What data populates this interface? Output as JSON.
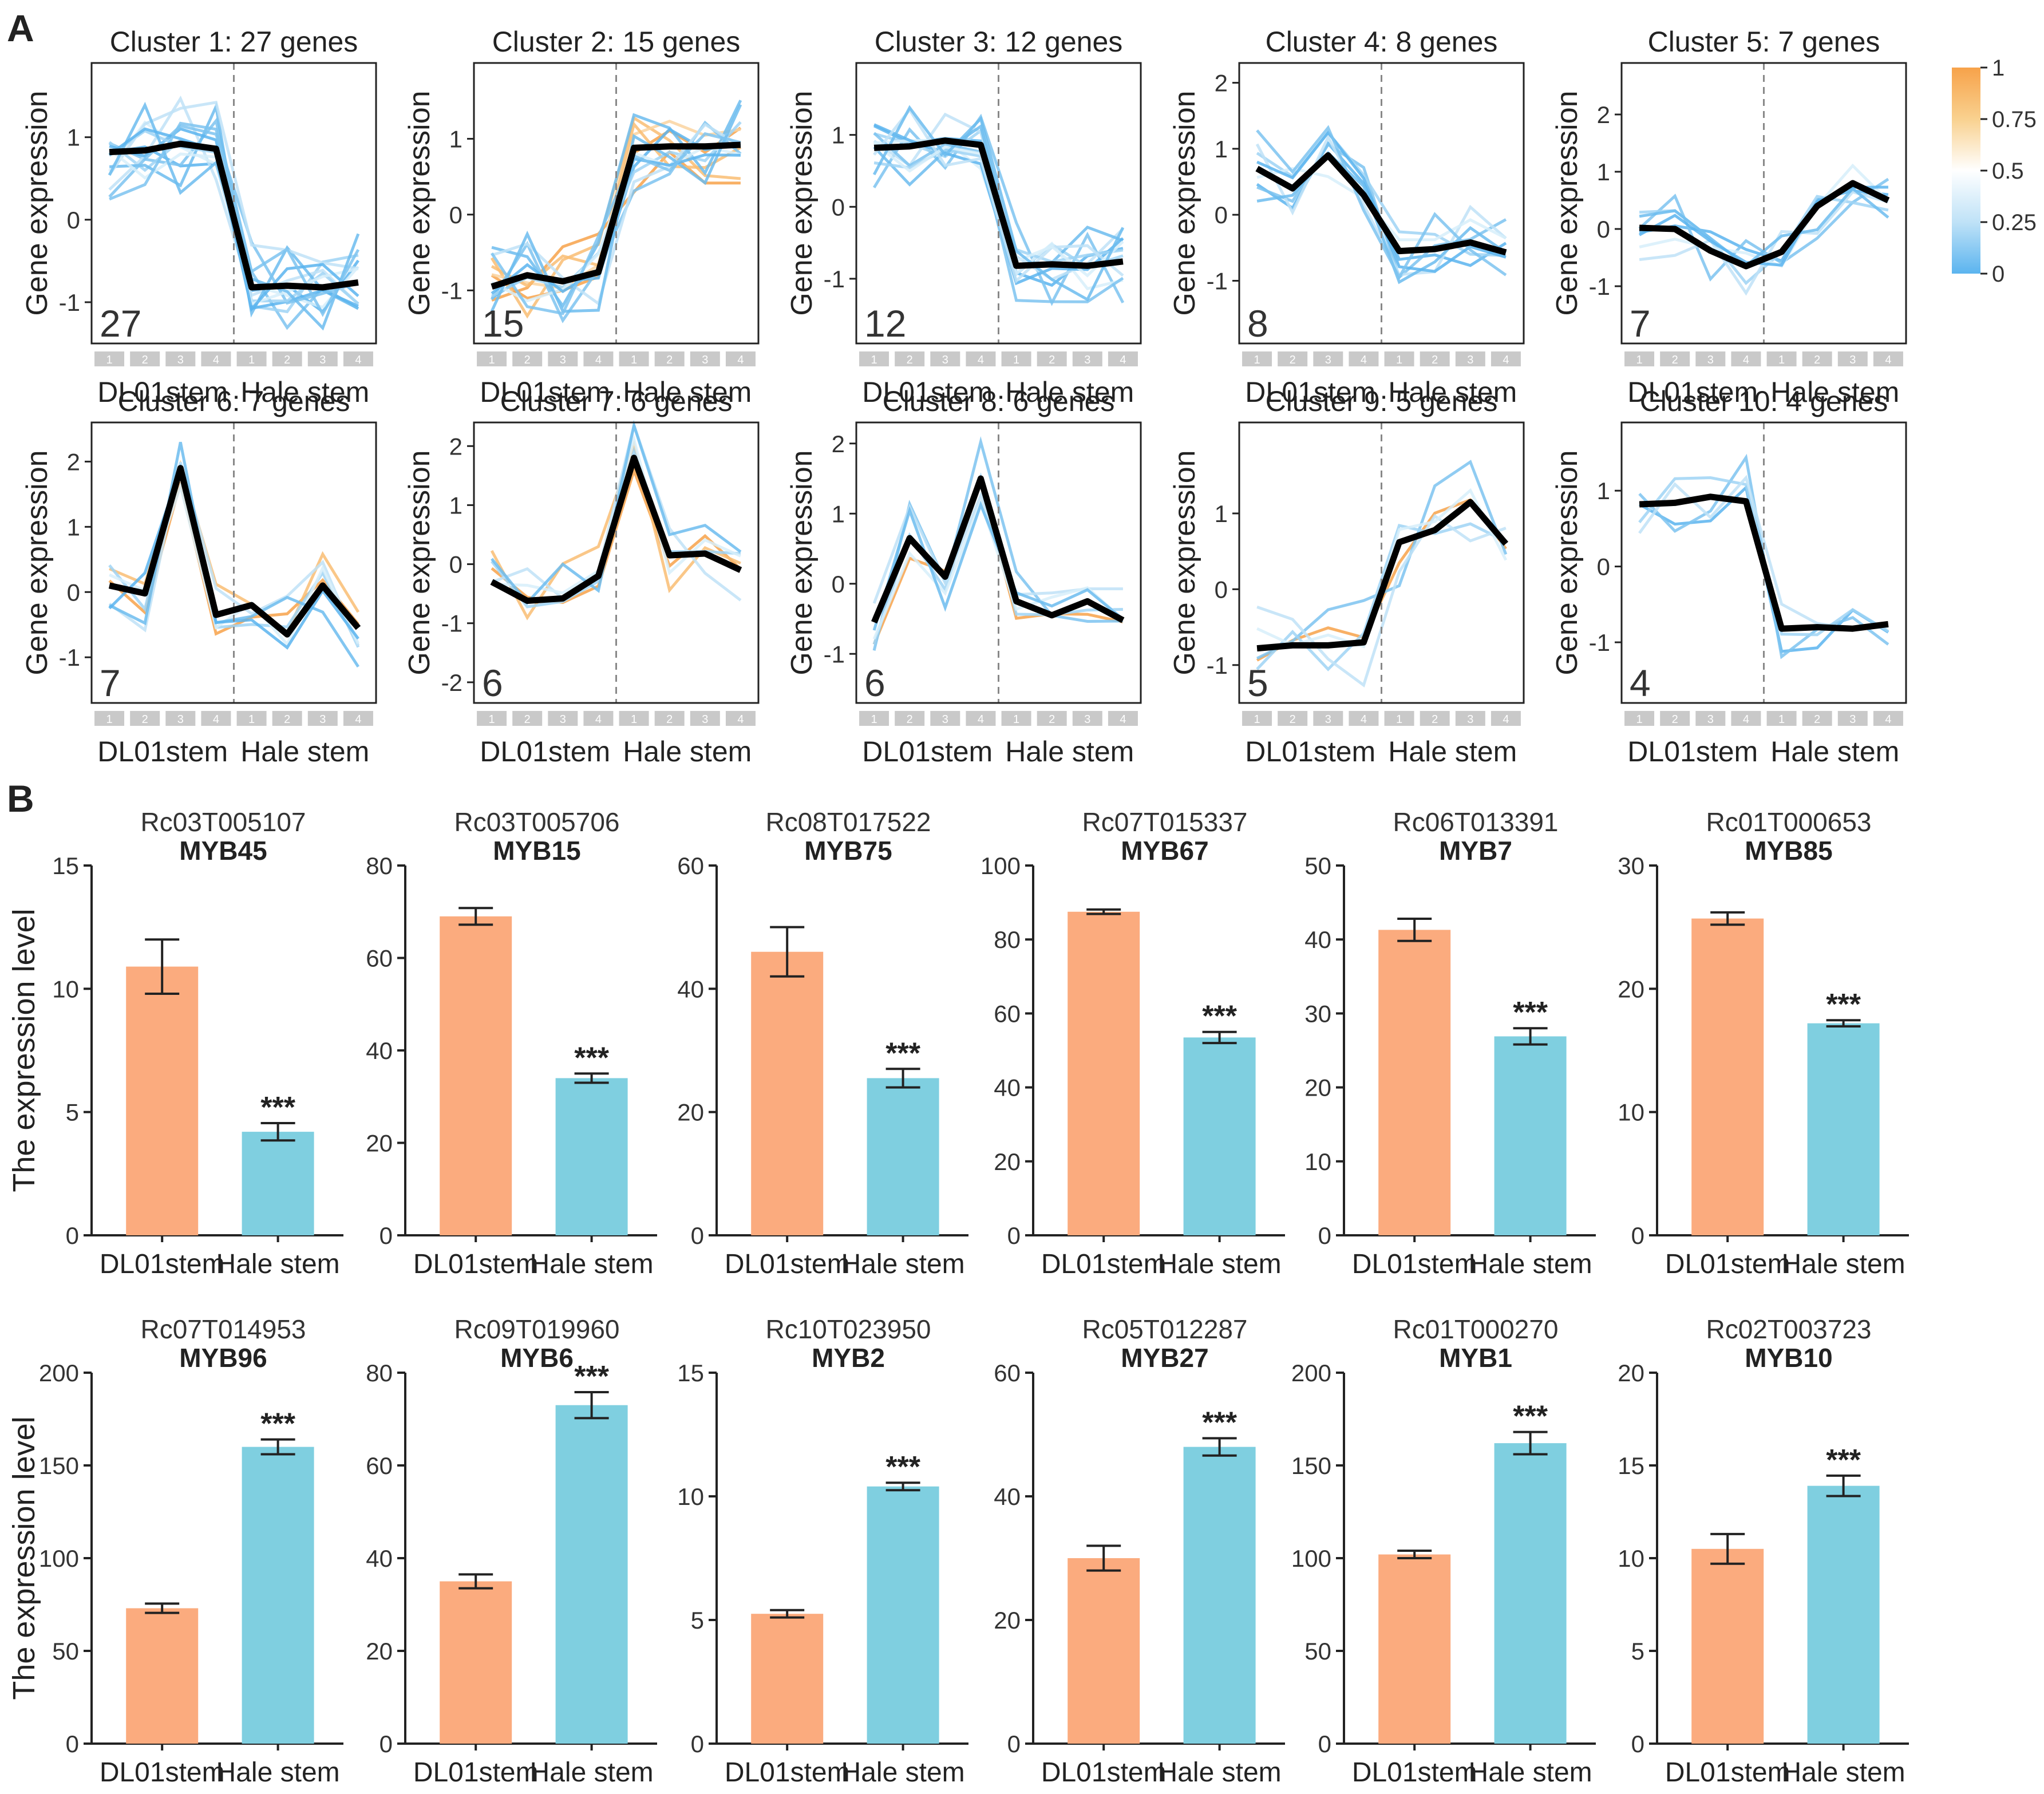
{
  "panel_a_label": "A",
  "panel_b_label": "B",
  "panel_a": {
    "y_axis_label": "Gene expression",
    "group_labels": [
      "DL01stem",
      "Hale stem"
    ],
    "replicate_labels": [
      "1",
      "2",
      "3",
      "4"
    ],
    "colorbar": {
      "ticks": [
        "1",
        "0.75",
        "0.5",
        "0.25",
        "0"
      ],
      "colors": [
        "#f7a24a",
        "#f9d18f",
        "#ffffff",
        "#bfe2f7",
        "#5bb4ef"
      ]
    }
  },
  "panel_b": {
    "y_axis_label": "The expression level",
    "colors": {
      "DL01stem": "#fbab7e",
      "Hale stem": "#7fcfe0"
    }
  },
  "chart_data": [
    {
      "type": "line",
      "title": "Cluster 1: 27 genes",
      "count": "27",
      "x": [
        1,
        2,
        3,
        4,
        5,
        6,
        7,
        8
      ],
      "ylim": [
        -1.5,
        1.9
      ],
      "yticks": [
        "-1",
        "0",
        "1"
      ],
      "ytick_values": [
        -1,
        0,
        1
      ],
      "centroid": [
        0.82,
        0.84,
        0.92,
        0.86,
        -0.82,
        -0.8,
        -0.82,
        -0.76
      ]
    },
    {
      "type": "line",
      "title": "Cluster 2: 15 genes",
      "count": "15",
      "x": [
        1,
        2,
        3,
        4,
        5,
        6,
        7,
        8
      ],
      "ylim": [
        -1.7,
        2.0
      ],
      "yticks": [
        "-1",
        "0",
        "1"
      ],
      "ytick_values": [
        -1,
        0,
        1
      ],
      "centroid": [
        -0.95,
        -0.8,
        -0.88,
        -0.76,
        0.88,
        0.9,
        0.9,
        0.92
      ]
    },
    {
      "type": "line",
      "title": "Cluster 3: 12 genes",
      "count": "12",
      "x": [
        1,
        2,
        3,
        4,
        5,
        6,
        7,
        8
      ],
      "ylim": [
        -1.9,
        2.0
      ],
      "yticks": [
        "-1",
        "0",
        "1"
      ],
      "ytick_values": [
        -1,
        0,
        1
      ],
      "centroid": [
        0.82,
        0.84,
        0.92,
        0.86,
        -0.82,
        -0.8,
        -0.82,
        -0.76
      ]
    },
    {
      "type": "line",
      "title": "Cluster 4: 8 genes",
      "count": "8",
      "x": [
        1,
        2,
        3,
        4,
        5,
        6,
        7,
        8
      ],
      "ylim": [
        -1.95,
        2.3
      ],
      "yticks": [
        "-1",
        "0",
        "1",
        "2"
      ],
      "ytick_values": [
        -1,
        0,
        1,
        2
      ],
      "centroid": [
        0.7,
        0.4,
        0.9,
        0.3,
        -0.55,
        -0.52,
        -0.42,
        -0.57
      ]
    },
    {
      "type": "line",
      "title": "Cluster 5: 7 genes",
      "count": "7",
      "x": [
        1,
        2,
        3,
        4,
        5,
        6,
        7,
        8
      ],
      "ylim": [
        -2.0,
        2.9
      ],
      "yticks": [
        "-1",
        "0",
        "1",
        "2"
      ],
      "ytick_values": [
        -1,
        0,
        1,
        2
      ],
      "centroid": [
        0.02,
        0.0,
        -0.38,
        -0.65,
        -0.4,
        0.4,
        0.8,
        0.5
      ]
    },
    {
      "type": "line",
      "title": "Cluster 6: 7 genes",
      "count": "7",
      "x": [
        1,
        2,
        3,
        4,
        5,
        6,
        7,
        8
      ],
      "ylim": [
        -1.7,
        2.6
      ],
      "yticks": [
        "-1",
        "0",
        "1",
        "2"
      ],
      "ytick_values": [
        -1,
        0,
        1,
        2
      ],
      "centroid": [
        0.1,
        -0.02,
        1.9,
        -0.35,
        -0.2,
        -0.65,
        0.1,
        -0.55
      ]
    },
    {
      "type": "line",
      "title": "Cluster 7: 6 genes",
      "count": "6",
      "x": [
        1,
        2,
        3,
        4,
        5,
        6,
        7,
        8
      ],
      "ylim": [
        -2.35,
        2.4
      ],
      "yticks": [
        "-2",
        "-1",
        "0",
        "1",
        "2"
      ],
      "ytick_values": [
        -2,
        -1,
        0,
        1,
        2
      ],
      "centroid": [
        -0.3,
        -0.62,
        -0.58,
        -0.2,
        1.8,
        0.15,
        0.18,
        -0.1
      ]
    },
    {
      "type": "line",
      "title": "Cluster 8: 6 genes",
      "count": "6",
      "x": [
        1,
        2,
        3,
        4,
        5,
        6,
        7,
        8
      ],
      "ylim": [
        -1.7,
        2.3
      ],
      "yticks": [
        "-1",
        "0",
        "1",
        "2"
      ],
      "ytick_values": [
        -1,
        0,
        1,
        2
      ],
      "centroid": [
        -0.55,
        0.65,
        0.1,
        1.5,
        -0.25,
        -0.45,
        -0.25,
        -0.52
      ]
    },
    {
      "type": "line",
      "title": "Cluster 9: 5 genes",
      "count": "5",
      "x": [
        1,
        2,
        3,
        4,
        5,
        6,
        7,
        8
      ],
      "ylim": [
        -1.5,
        2.2
      ],
      "yticks": [
        "-1",
        "0",
        "1"
      ],
      "ytick_values": [
        -1,
        0,
        1
      ],
      "centroid": [
        -0.78,
        -0.74,
        -0.74,
        -0.7,
        0.62,
        0.78,
        1.15,
        0.6
      ]
    },
    {
      "type": "line",
      "title": "Cluster 10: 4 genes",
      "count": "4",
      "x": [
        1,
        2,
        3,
        4,
        5,
        6,
        7,
        8
      ],
      "ylim": [
        -1.8,
        1.9
      ],
      "yticks": [
        "-1",
        "0",
        "1"
      ],
      "ytick_values": [
        -1,
        0,
        1
      ],
      "centroid": [
        0.82,
        0.84,
        0.92,
        0.86,
        -0.82,
        -0.8,
        -0.82,
        -0.76
      ]
    },
    {
      "type": "bar",
      "gene_id": "Rc03T005107",
      "gene": "MYB45",
      "categories": [
        "DL01stem",
        "Hale stem"
      ],
      "values": [
        10.9,
        4.2
      ],
      "errors": [
        1.1,
        0.35
      ],
      "ylim": [
        0,
        15
      ],
      "yticks": [
        "0",
        "5",
        "10",
        "15"
      ],
      "ytick_values": [
        0,
        5,
        10,
        15
      ],
      "significance": "***"
    },
    {
      "type": "bar",
      "gene_id": "Rc03T005706",
      "gene": "MYB15",
      "categories": [
        "DL01stem",
        "Hale stem"
      ],
      "values": [
        69,
        34
      ],
      "errors": [
        1.8,
        1.0
      ],
      "ylim": [
        0,
        80
      ],
      "yticks": [
        "0",
        "20",
        "40",
        "60",
        "80"
      ],
      "ytick_values": [
        0,
        20,
        40,
        60,
        80
      ],
      "significance": "***"
    },
    {
      "type": "bar",
      "gene_id": "Rc08T017522",
      "gene": "MYB75",
      "categories": [
        "DL01stem",
        "Hale stem"
      ],
      "values": [
        46,
        25.5
      ],
      "errors": [
        4.0,
        1.5
      ],
      "ylim": [
        0,
        60
      ],
      "yticks": [
        "0",
        "20",
        "40",
        "60"
      ],
      "ytick_values": [
        0,
        20,
        40,
        60
      ],
      "significance": "***"
    },
    {
      "type": "bar",
      "gene_id": "Rc07T015337",
      "gene": "MYB67",
      "categories": [
        "DL01stem",
        "Hale stem"
      ],
      "values": [
        87.5,
        53.5
      ],
      "errors": [
        0.6,
        1.5
      ],
      "ylim": [
        0,
        100
      ],
      "yticks": [
        "0",
        "20",
        "40",
        "60",
        "80",
        "100"
      ],
      "ytick_values": [
        0,
        20,
        40,
        60,
        80,
        100
      ],
      "significance": "***"
    },
    {
      "type": "bar",
      "gene_id": "Rc06T013391",
      "gene": "MYB7",
      "categories": [
        "DL01stem",
        "Hale stem"
      ],
      "values": [
        41.3,
        26.9
      ],
      "errors": [
        1.5,
        1.1
      ],
      "ylim": [
        0,
        50
      ],
      "yticks": [
        "0",
        "10",
        "20",
        "30",
        "40",
        "50"
      ],
      "ytick_values": [
        0,
        10,
        20,
        30,
        40,
        50
      ],
      "significance": "***"
    },
    {
      "type": "bar",
      "gene_id": "Rc01T000653",
      "gene": "MYB85",
      "categories": [
        "DL01stem",
        "Hale stem"
      ],
      "values": [
        25.7,
        17.2
      ],
      "errors": [
        0.5,
        0.25
      ],
      "ylim": [
        0,
        30
      ],
      "yticks": [
        "0",
        "10",
        "20",
        "30"
      ],
      "ytick_values": [
        0,
        10,
        20,
        30
      ],
      "significance": "***"
    },
    {
      "type": "bar",
      "gene_id": "Rc07T014953",
      "gene": "MYB96",
      "categories": [
        "DL01stem",
        "Hale stem"
      ],
      "values": [
        73,
        160
      ],
      "errors": [
        2.5,
        4.0
      ],
      "ylim": [
        0,
        200
      ],
      "yticks": [
        "0",
        "50",
        "100",
        "150",
        "200"
      ],
      "ytick_values": [
        0,
        50,
        100,
        150,
        200
      ],
      "significance": "***"
    },
    {
      "type": "bar",
      "gene_id": "Rc09T019960",
      "gene": "MYB6",
      "categories": [
        "DL01stem",
        "Hale stem"
      ],
      "values": [
        35,
        73
      ],
      "errors": [
        1.5,
        2.8
      ],
      "ylim": [
        0,
        80
      ],
      "yticks": [
        "0",
        "20",
        "40",
        "60",
        "80"
      ],
      "ytick_values": [
        0,
        20,
        40,
        60,
        80
      ],
      "significance": "***"
    },
    {
      "type": "bar",
      "gene_id": "Rc10T023950",
      "gene": "MYB2",
      "categories": [
        "DL01stem",
        "Hale stem"
      ],
      "values": [
        5.25,
        10.4
      ],
      "errors": [
        0.15,
        0.15
      ],
      "ylim": [
        0,
        15
      ],
      "yticks": [
        "0",
        "5",
        "10",
        "15"
      ],
      "ytick_values": [
        0,
        5,
        10,
        15
      ],
      "significance": "***"
    },
    {
      "type": "bar",
      "gene_id": "Rc05T012287",
      "gene": "MYB27",
      "categories": [
        "DL01stem",
        "Hale stem"
      ],
      "values": [
        30,
        48
      ],
      "errors": [
        2.0,
        1.4
      ],
      "ylim": [
        0,
        60
      ],
      "yticks": [
        "0",
        "20",
        "40",
        "60"
      ],
      "ytick_values": [
        0,
        20,
        40,
        60
      ],
      "significance": "***"
    },
    {
      "type": "bar",
      "gene_id": "Rc01T000270",
      "gene": "MYB1",
      "categories": [
        "DL01stem",
        "Hale stem"
      ],
      "values": [
        102,
        162
      ],
      "errors": [
        2.0,
        6.0
      ],
      "ylim": [
        0,
        200
      ],
      "yticks": [
        "0",
        "50",
        "100",
        "150",
        "200"
      ],
      "ytick_values": [
        0,
        50,
        100,
        150,
        200
      ],
      "significance": "***"
    },
    {
      "type": "bar",
      "gene_id": "Rc02T003723",
      "gene": "MYB10",
      "categories": [
        "DL01stem",
        "Hale stem"
      ],
      "values": [
        10.5,
        13.9
      ],
      "errors": [
        0.8,
        0.55
      ],
      "ylim": [
        0,
        20
      ],
      "yticks": [
        "0",
        "5",
        "10",
        "15",
        "20"
      ],
      "ytick_values": [
        0,
        5,
        10,
        15,
        20
      ],
      "significance": "***"
    }
  ]
}
